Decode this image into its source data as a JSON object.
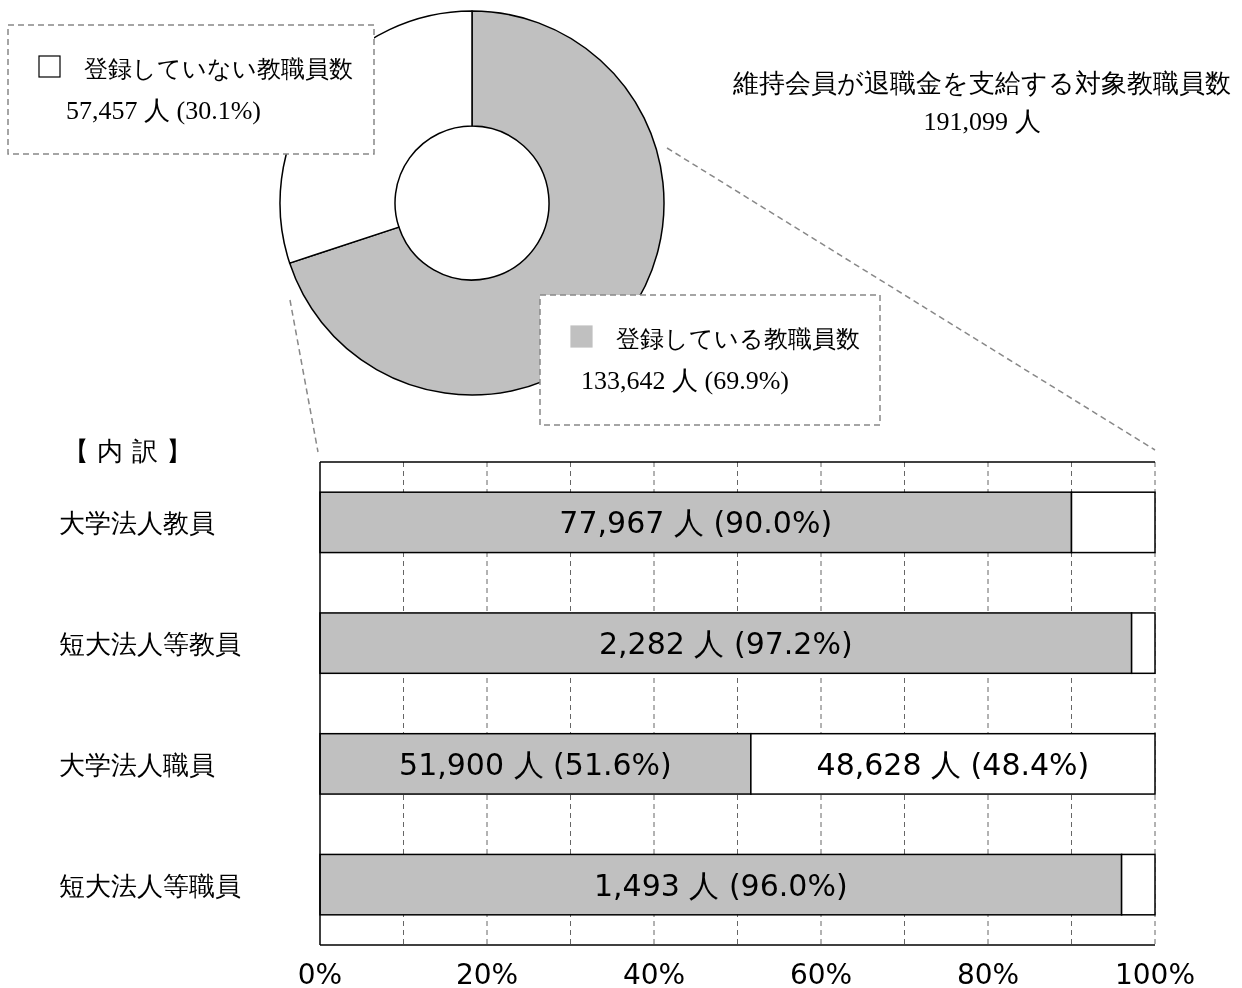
{
  "chart_data": [
    {
      "type": "donut",
      "title": "維持会員が退職金を支給する対象教職員数",
      "subtitle": "191,099 人",
      "categories": [
        "登録している教職員数",
        "登録していない教職員数"
      ],
      "values": [
        133642,
        57457
      ],
      "colors": [
        "#c0c0c0",
        "#ffffff"
      ],
      "value_labels": [
        "133,642 人 (69.9%)",
        "57,457 人 (30.1%)"
      ],
      "legend": "bottom left"
    },
    {
      "type": "bar",
      "orientation": "horizontal",
      "stacked": true,
      "title": "【 内 訳 】",
      "categories": [
        "大学法人教員",
        "短大法人等教員",
        "大学法人職員",
        "短大法人等職員"
      ],
      "series": [
        {
          "color": "#c0c0c0",
          "values": [
            90.0,
            97.2,
            51.6,
            96.0
          ],
          "value_labels": [
            "77,967 人 (90.0%)",
            "2,282 人 (97.2%)",
            "51,900 人 (51.6%)",
            "1,493 人 (96.0%)"
          ]
        },
        {
          "color": "#ffffff",
          "values": [
            10.0,
            2.8,
            48.4,
            4.0
          ],
          "value_labels": [
            null,
            null,
            "48,628 人 (48.4%)",
            null
          ]
        }
      ],
      "xlim": [
        0,
        100
      ],
      "xticks": [
        {
          "value": 0,
          "label": "0%"
        },
        {
          "value": 10,
          "label": null
        },
        {
          "value": 20,
          "label": "20%"
        },
        {
          "value": 30,
          "label": null
        },
        {
          "value": 40,
          "label": "40%"
        },
        {
          "value": 50,
          "label": null
        },
        {
          "value": 60,
          "label": "60%"
        },
        {
          "value": 70,
          "label": null
        },
        {
          "value": 80,
          "label": "80%"
        },
        {
          "value": 90,
          "label": null
        },
        {
          "value": 100,
          "label": "100%"
        }
      ],
      "grid": "x"
    }
  ]
}
